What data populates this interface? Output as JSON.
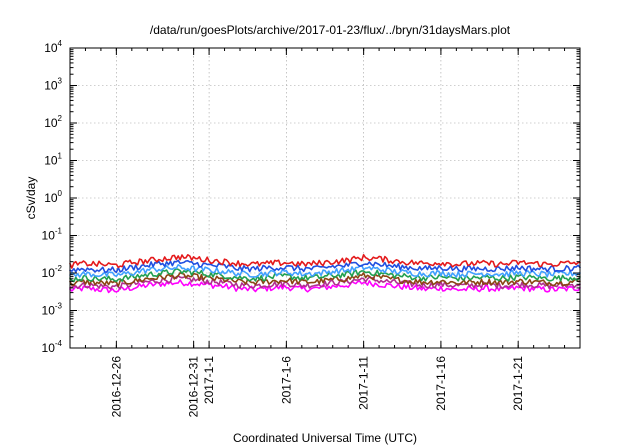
{
  "chart_data": {
    "type": "line",
    "title": "/data/run/goesPlots/archive/2017-01-23/flux/../bryn/31daysMars.plot",
    "xlabel": "Coordinated Universal Time (UTC)",
    "ylabel": "cSv/day",
    "y_scale": "log",
    "ylim": [
      0.0001,
      10000
    ],
    "y_ticks": [
      {
        "value": 0.0001,
        "base": "10",
        "exp": "-4"
      },
      {
        "value": 0.001,
        "base": "10",
        "exp": "-3"
      },
      {
        "value": 0.01,
        "base": "10",
        "exp": "-2"
      },
      {
        "value": 0.1,
        "base": "10",
        "exp": "-1"
      },
      {
        "value": 1,
        "base": "10",
        "exp": "0"
      },
      {
        "value": 10,
        "base": "10",
        "exp": "1"
      },
      {
        "value": 100,
        "base": "10",
        "exp": "2"
      },
      {
        "value": 1000,
        "base": "10",
        "exp": "3"
      },
      {
        "value": 10000,
        "base": "10",
        "exp": "4"
      }
    ],
    "xlim": [
      "2016-12-23",
      "2017-01-25"
    ],
    "x_ticks": [
      "2016-12-26",
      "2016-12-31",
      "2017-1-1",
      "2017-1-6",
      "2017-1-11",
      "2017-1-16",
      "2017-1-21"
    ],
    "x_tick_dates": [
      "2016-12-26",
      "2016-12-31",
      "2017-01-01",
      "2017-01-06",
      "2017-01-11",
      "2017-01-16",
      "2017-01-21"
    ],
    "grid": true,
    "legend": "none",
    "x": [
      "2016-12-23",
      "2016-12-24",
      "2016-12-25",
      "2016-12-26",
      "2016-12-27",
      "2016-12-28",
      "2016-12-29",
      "2016-12-30",
      "2016-12-31",
      "2017-01-01",
      "2017-01-02",
      "2017-01-03",
      "2017-01-04",
      "2017-01-05",
      "2017-01-06",
      "2017-01-07",
      "2017-01-08",
      "2017-01-09",
      "2017-01-10",
      "2017-01-11",
      "2017-01-12",
      "2017-01-13",
      "2017-01-14",
      "2017-01-15",
      "2017-01-16",
      "2017-01-17",
      "2017-01-18",
      "2017-01-19",
      "2017-01-20",
      "2017-01-21",
      "2017-01-22",
      "2017-01-23",
      "2017-01-24",
      "2017-01-25"
    ],
    "series": [
      {
        "color": "#e41a1c",
        "values": [
          0.016,
          0.018,
          0.017,
          0.016,
          0.019,
          0.021,
          0.024,
          0.027,
          0.025,
          0.022,
          0.02,
          0.018,
          0.017,
          0.018,
          0.019,
          0.017,
          0.018,
          0.02,
          0.022,
          0.026,
          0.024,
          0.021,
          0.019,
          0.018,
          0.019,
          0.017,
          0.018,
          0.018,
          0.017,
          0.019,
          0.018,
          0.017,
          0.018,
          0.019
        ]
      },
      {
        "color": "#1f4fe0",
        "values": [
          0.012,
          0.013,
          0.012,
          0.012,
          0.014,
          0.016,
          0.018,
          0.019,
          0.018,
          0.016,
          0.015,
          0.013,
          0.013,
          0.014,
          0.014,
          0.013,
          0.013,
          0.015,
          0.016,
          0.019,
          0.017,
          0.015,
          0.014,
          0.013,
          0.014,
          0.013,
          0.013,
          0.013,
          0.013,
          0.014,
          0.013,
          0.013,
          0.013,
          0.014
        ]
      },
      {
        "color": "#40a0ff",
        "values": [
          0.0085,
          0.0095,
          0.009,
          0.0088,
          0.01,
          0.012,
          0.013,
          0.014,
          0.013,
          0.012,
          0.011,
          0.0095,
          0.0092,
          0.01,
          0.0105,
          0.0095,
          0.0098,
          0.011,
          0.012,
          0.014,
          0.0125,
          0.011,
          0.01,
          0.0095,
          0.01,
          0.0092,
          0.0095,
          0.0097,
          0.0093,
          0.01,
          0.0096,
          0.0092,
          0.0095,
          0.01
        ]
      },
      {
        "color": "#20a050",
        "values": [
          0.0068,
          0.0075,
          0.007,
          0.0068,
          0.0078,
          0.009,
          0.01,
          0.011,
          0.0105,
          0.0092,
          0.0085,
          0.0075,
          0.0072,
          0.0078,
          0.0082,
          0.0074,
          0.0076,
          0.0085,
          0.0092,
          0.011,
          0.0098,
          0.0086,
          0.0079,
          0.0074,
          0.0078,
          0.0072,
          0.0074,
          0.0076,
          0.0072,
          0.0078,
          0.0075,
          0.0072,
          0.0074,
          0.0078
        ]
      },
      {
        "color": "#8b4513",
        "values": [
          0.0052,
          0.0058,
          0.0054,
          0.0052,
          0.006,
          0.007,
          0.0078,
          0.0085,
          0.008,
          0.0072,
          0.0066,
          0.0058,
          0.0056,
          0.006,
          0.0064,
          0.0057,
          0.0059,
          0.0066,
          0.0072,
          0.0085,
          0.0076,
          0.0067,
          0.0061,
          0.0057,
          0.006,
          0.0055,
          0.0057,
          0.0059,
          0.0056,
          0.006,
          0.0058,
          0.0055,
          0.0057,
          0.006
        ]
      },
      {
        "color": "#b03090",
        "values": [
          0.0044,
          0.0048,
          0.0045,
          0.0043,
          0.005,
          0.0058,
          0.0065,
          0.007,
          0.0066,
          0.006,
          0.0055,
          0.0048,
          0.0046,
          0.005,
          0.0053,
          0.0047,
          0.0049,
          0.0055,
          0.006,
          0.007,
          0.0063,
          0.0056,
          0.0051,
          0.0047,
          0.005,
          0.0046,
          0.0047,
          0.0049,
          0.0046,
          0.005,
          0.0048,
          0.0046,
          0.0047,
          0.005
        ]
      },
      {
        "color": "#ff00ff",
        "values": [
          0.0035,
          0.0039,
          0.0036,
          0.0034,
          0.004,
          0.0047,
          0.0052,
          0.0056,
          0.0053,
          0.0048,
          0.0044,
          0.0038,
          0.0036,
          0.004,
          0.0042,
          0.0037,
          0.0039,
          0.0044,
          0.0048,
          0.0056,
          0.005,
          0.0045,
          0.0041,
          0.0037,
          0.004,
          0.0036,
          0.0037,
          0.0039,
          0.0036,
          0.004,
          0.0038,
          0.0036,
          0.0037,
          0.004
        ]
      }
    ]
  }
}
